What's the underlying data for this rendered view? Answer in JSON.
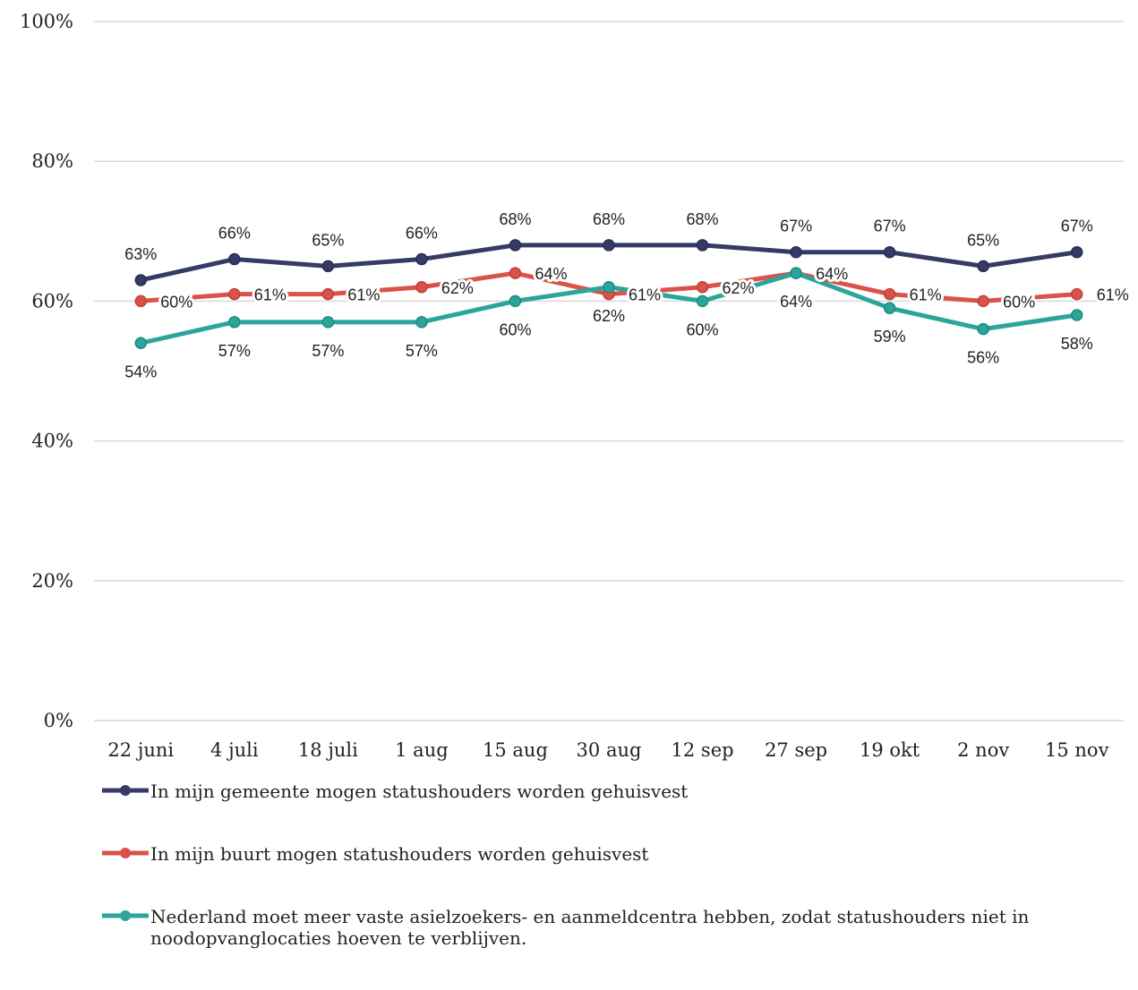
{
  "chart_data": {
    "type": "line",
    "categories": [
      "22 juni",
      "4 juli",
      "18 juli",
      "1 aug",
      "15 aug",
      "30 aug",
      "12 sep",
      "27 sep",
      "19 okt",
      "2 nov",
      "15 nov"
    ],
    "ylim": [
      0,
      100
    ],
    "yticks": [
      {
        "value": 0,
        "label": "0%"
      },
      {
        "value": 20,
        "label": "20%"
      },
      {
        "value": 40,
        "label": "40%"
      },
      {
        "value": 60,
        "label": "60%"
      },
      {
        "value": 80,
        "label": "80%"
      },
      {
        "value": 100,
        "label": "100%"
      }
    ],
    "grid": true,
    "series": [
      {
        "name": "In mijn gemeente mogen statushouders worden gehuisvest",
        "color": "#363a66",
        "values": [
          63,
          66,
          65,
          66,
          68,
          68,
          68,
          67,
          67,
          65,
          67
        ],
        "value_labels": [
          "63%",
          "66%",
          "65%",
          "66%",
          "68%",
          "68%",
          "68%",
          "67%",
          "67%",
          "65%",
          "67%"
        ]
      },
      {
        "name": "In mijn buurt mogen statushouders worden gehuisvest",
        "color": "#d9534a",
        "values": [
          60,
          61,
          61,
          62,
          64,
          61,
          62,
          64,
          61,
          60,
          61
        ],
        "value_labels": [
          "60%",
          "61%",
          "61%",
          "62%",
          "64%",
          "61%",
          "62%",
          "64%",
          "61%",
          "60%",
          "61%"
        ]
      },
      {
        "name": "Nederland moet meer vaste asielzoekers- en aanmeldcentra hebben, zodat statushouders niet in noodopvanglocaties hoeven te verblijven.",
        "color": "#2ba59a",
        "values": [
          54,
          57,
          57,
          57,
          60,
          62,
          60,
          64,
          59,
          56,
          58
        ],
        "value_labels": [
          "54%",
          "57%",
          "57%",
          "57%",
          "60%",
          "62%",
          "60%",
          "64%",
          "59%",
          "56%",
          "58%"
        ]
      }
    ]
  }
}
